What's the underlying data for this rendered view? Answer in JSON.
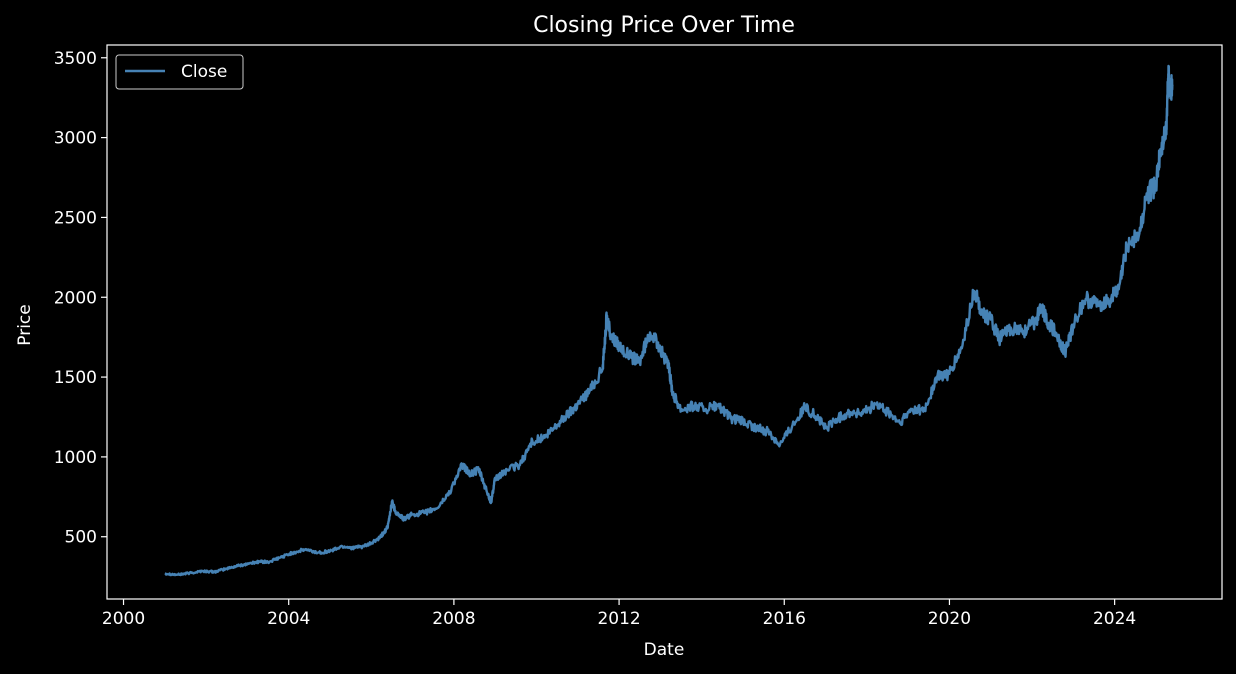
{
  "chart_data": {
    "type": "line",
    "title": "Closing Price Over Time",
    "xlabel": "Date",
    "ylabel": "Price",
    "xlim": [
      1999.6,
      2026.6
    ],
    "ylim": [
      110,
      3580
    ],
    "xticks": [
      2000,
      2004,
      2008,
      2012,
      2016,
      2020,
      2024
    ],
    "yticks": [
      500,
      1000,
      1500,
      2000,
      2500,
      3000,
      3500
    ],
    "grid": false,
    "legend_position": "top-left",
    "background_color": "#000000",
    "foreground_color": "#ffffff",
    "series": [
      {
        "name": "Close",
        "color": "#4682b4",
        "points": [
          [
            2001.0,
            270
          ],
          [
            2001.3,
            262
          ],
          [
            2001.6,
            272
          ],
          [
            2001.9,
            285
          ],
          [
            2002.2,
            280
          ],
          [
            2002.5,
            300
          ],
          [
            2002.8,
            320
          ],
          [
            2003.1,
            335
          ],
          [
            2003.3,
            345
          ],
          [
            2003.5,
            340
          ],
          [
            2003.8,
            370
          ],
          [
            2004.1,
            400
          ],
          [
            2004.4,
            420
          ],
          [
            2004.7,
            400
          ],
          [
            2005.0,
            410
          ],
          [
            2005.3,
            440
          ],
          [
            2005.6,
            430
          ],
          [
            2005.9,
            445
          ],
          [
            2006.2,
            490
          ],
          [
            2006.4,
            560
          ],
          [
            2006.5,
            720
          ],
          [
            2006.6,
            650
          ],
          [
            2006.8,
            610
          ],
          [
            2007.0,
            640
          ],
          [
            2007.3,
            650
          ],
          [
            2007.6,
            680
          ],
          [
            2007.9,
            780
          ],
          [
            2008.2,
            950
          ],
          [
            2008.4,
            890
          ],
          [
            2008.6,
            920
          ],
          [
            2008.8,
            780
          ],
          [
            2008.9,
            720
          ],
          [
            2009.0,
            860
          ],
          [
            2009.3,
            920
          ],
          [
            2009.6,
            950
          ],
          [
            2009.9,
            1100
          ],
          [
            2010.2,
            1120
          ],
          [
            2010.5,
            1200
          ],
          [
            2010.8,
            1280
          ],
          [
            2011.0,
            1330
          ],
          [
            2011.3,
            1420
          ],
          [
            2011.6,
            1550
          ],
          [
            2011.7,
            1880
          ],
          [
            2011.8,
            1760
          ],
          [
            2012.0,
            1700
          ],
          [
            2012.3,
            1620
          ],
          [
            2012.5,
            1600
          ],
          [
            2012.75,
            1780
          ],
          [
            2013.0,
            1680
          ],
          [
            2013.2,
            1560
          ],
          [
            2013.3,
            1400
          ],
          [
            2013.5,
            1300
          ],
          [
            2013.8,
            1320
          ],
          [
            2014.1,
            1300
          ],
          [
            2014.4,
            1320
          ],
          [
            2014.7,
            1240
          ],
          [
            2015.0,
            1220
          ],
          [
            2015.3,
            1180
          ],
          [
            2015.6,
            1160
          ],
          [
            2015.9,
            1080
          ],
          [
            2016.2,
            1200
          ],
          [
            2016.5,
            1310
          ],
          [
            2016.8,
            1250
          ],
          [
            2017.0,
            1180
          ],
          [
            2017.3,
            1240
          ],
          [
            2017.6,
            1280
          ],
          [
            2017.9,
            1270
          ],
          [
            2018.2,
            1330
          ],
          [
            2018.5,
            1280
          ],
          [
            2018.8,
            1210
          ],
          [
            2019.1,
            1300
          ],
          [
            2019.4,
            1290
          ],
          [
            2019.7,
            1500
          ],
          [
            2020.0,
            1520
          ],
          [
            2020.3,
            1680
          ],
          [
            2020.6,
            2040
          ],
          [
            2020.8,
            1900
          ],
          [
            2021.0,
            1860
          ],
          [
            2021.2,
            1740
          ],
          [
            2021.5,
            1800
          ],
          [
            2021.8,
            1790
          ],
          [
            2022.1,
            1850
          ],
          [
            2022.2,
            1950
          ],
          [
            2022.4,
            1840
          ],
          [
            2022.6,
            1760
          ],
          [
            2022.8,
            1650
          ],
          [
            2023.0,
            1830
          ],
          [
            2023.3,
            1990
          ],
          [
            2023.6,
            1950
          ],
          [
            2023.9,
            1990
          ],
          [
            2024.1,
            2050
          ],
          [
            2024.3,
            2330
          ],
          [
            2024.6,
            2400
          ],
          [
            2024.8,
            2650
          ],
          [
            2025.0,
            2700
          ],
          [
            2025.1,
            2900
          ],
          [
            2025.25,
            3050
          ],
          [
            2025.3,
            3400
          ],
          [
            2025.35,
            3300
          ],
          [
            2025.4,
            3320
          ]
        ]
      }
    ]
  }
}
